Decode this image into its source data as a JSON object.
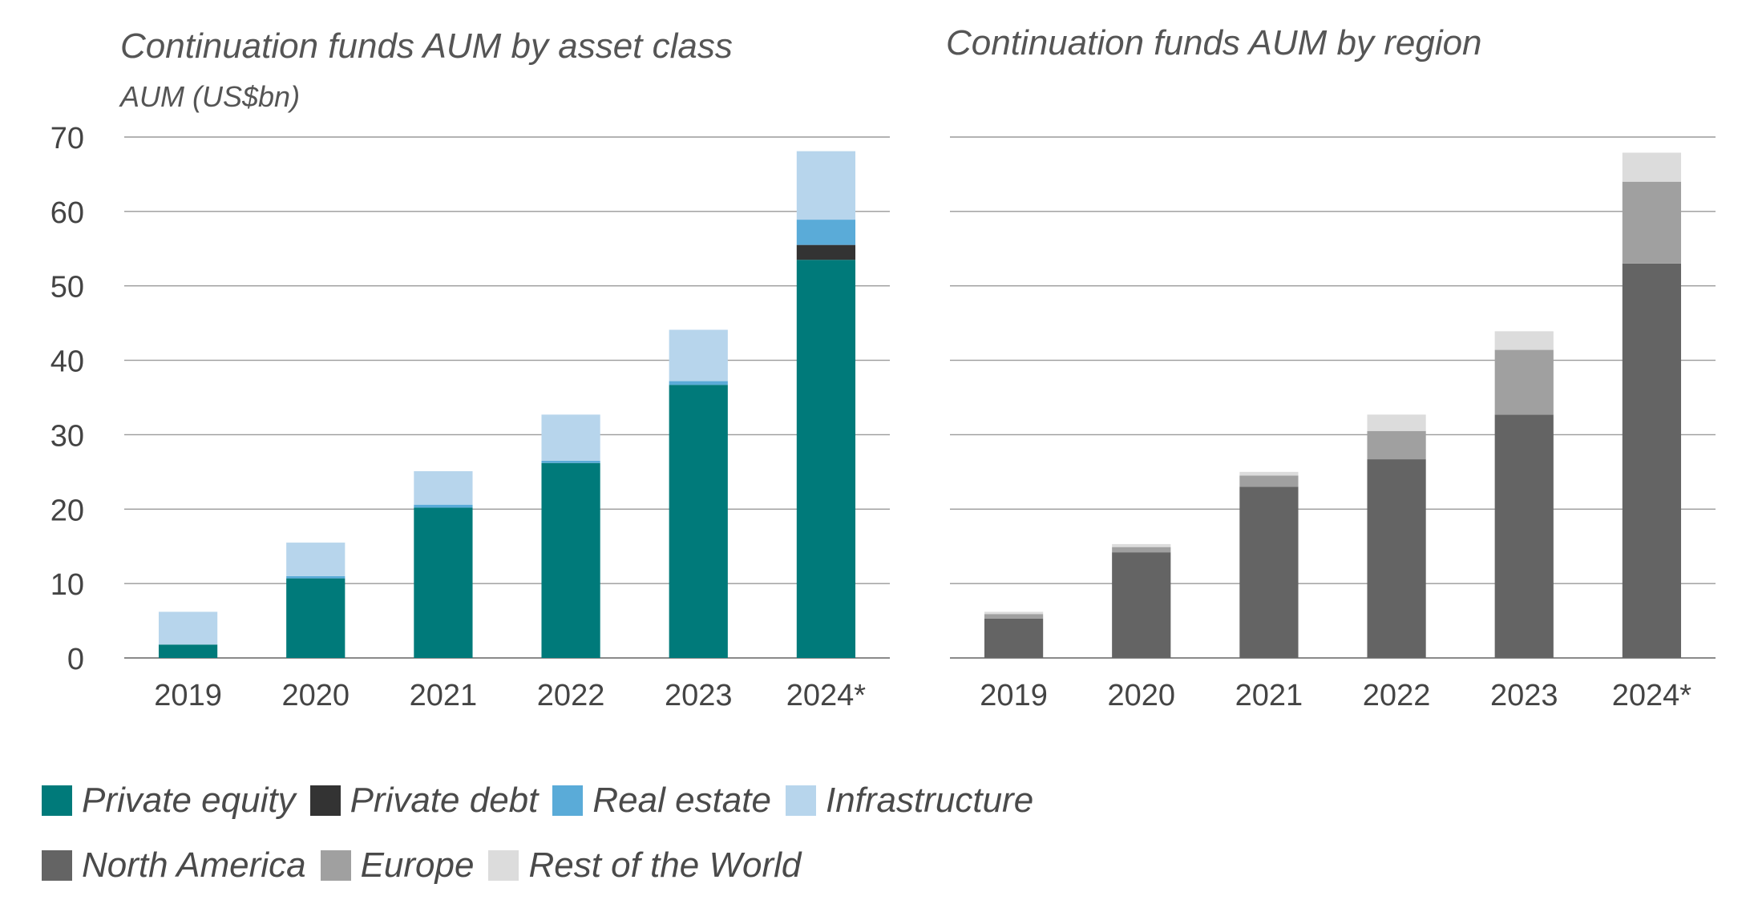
{
  "chart_data": [
    {
      "type": "bar",
      "stacked": true,
      "title": "Continuation funds AUM by asset class",
      "ylabel": "AUM (US$bn)",
      "xlabel": "",
      "ylim": [
        0,
        70
      ],
      "yticks": [
        0,
        10,
        20,
        30,
        40,
        50,
        60,
        70
      ],
      "grid": true,
      "categories": [
        "2019",
        "2020",
        "2021",
        "2022",
        "2023",
        "2024*"
      ],
      "series": [
        {
          "name": "Private equity",
          "color": "#007a7a",
          "values": [
            1.8,
            10.7,
            20.2,
            26.2,
            36.7,
            53.5
          ]
        },
        {
          "name": "Private debt",
          "color": "#333333",
          "values": [
            0,
            0,
            0,
            0,
            0,
            2
          ]
        },
        {
          "name": "Real estate",
          "color": "#5aabd8",
          "values": [
            0,
            0.3,
            0.4,
            0.3,
            0.5,
            3.4
          ]
        },
        {
          "name": "Infrastructure",
          "color": "#b7d5ec",
          "values": [
            4.4,
            4.5,
            4.5,
            6.2,
            6.9,
            9.2
          ]
        }
      ]
    },
    {
      "type": "bar",
      "stacked": true,
      "title": "Continuation funds AUM by region",
      "ylabel": "",
      "xlabel": "",
      "ylim": [
        0,
        70
      ],
      "grid": true,
      "categories": [
        "2019",
        "2020",
        "2021",
        "2022",
        "2023",
        "2024*"
      ],
      "series": [
        {
          "name": "North America",
          "color": "#646464",
          "values": [
            5.3,
            14.2,
            23,
            26.7,
            32.7,
            53
          ]
        },
        {
          "name": "Europe",
          "color": "#a0a0a0",
          "values": [
            0.6,
            0.7,
            1.5,
            3.8,
            8.7,
            11
          ]
        },
        {
          "name": "Rest of the World",
          "color": "#dcdcdc",
          "values": [
            0.3,
            0.4,
            0.5,
            2.2,
            2.5,
            3.9
          ]
        }
      ]
    }
  ]
}
